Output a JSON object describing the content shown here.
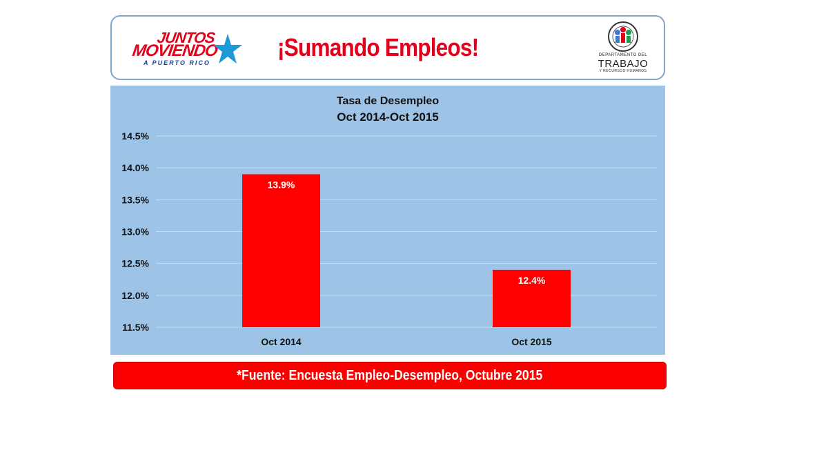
{
  "header": {
    "logo_left": {
      "line1": "JUNTOS",
      "line2": "MOVIENDO",
      "line3": "A PUERTO RICO",
      "icon": "star-icon"
    },
    "title": "¡Sumando Empleos!",
    "logo_right": {
      "line1": "DEPARTAMENTO DEL",
      "line2": "TRABAJO",
      "line3": "Y RECURSOS HUMANOS",
      "icon": "department-emblem-icon"
    }
  },
  "chart_data": {
    "type": "bar",
    "title": "Tasa de Desempleo",
    "subtitle": "Oct 2014-Oct 2015",
    "categories": [
      "Oct 2014",
      "Oct 2015"
    ],
    "values": [
      13.9,
      12.4
    ],
    "data_labels": [
      "13.9%",
      "12.4%"
    ],
    "ylim": [
      11.5,
      14.5
    ],
    "yticks": [
      "14.5%",
      "14.0%",
      "13.5%",
      "13.0%",
      "12.5%",
      "12.0%",
      "11.5%"
    ],
    "ytick_values": [
      14.5,
      14.0,
      13.5,
      13.0,
      12.5,
      12.0,
      11.5
    ],
    "grid": true,
    "bar_color": "#ff0000",
    "background_color": "#9dc3e6"
  },
  "footer": {
    "text": "*Fuente: Encuesta Empleo-Desempleo,  Octubre 2015"
  }
}
